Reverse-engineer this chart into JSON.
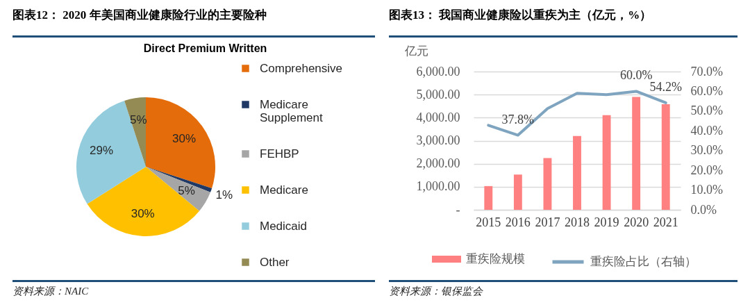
{
  "chart_data": [
    {
      "type": "pie",
      "title": "图表12： 2020 年美国商业健康险行业的主要险种",
      "subtitle": "Direct Premium Written",
      "categories": [
        "Comprehensive",
        "Medicare Supplement",
        "FEHBP",
        "Medicare",
        "Medicaid",
        "Other"
      ],
      "values": [
        30,
        1,
        5,
        30,
        29,
        5
      ],
      "colors": [
        "#e46c0a",
        "#1f3864",
        "#a6a6a6",
        "#ffc000",
        "#93cddd",
        "#948a54"
      ],
      "value_labels": [
        "30%",
        "1%",
        "5%",
        "30%",
        "29%",
        "5%"
      ],
      "legend": "right",
      "annotations": [
        "资料来源：NAIC"
      ]
    },
    {
      "type": "bar",
      "title": "图表13： 我国商业健康险以重疾为主（亿元，%）",
      "ylabel": "亿元",
      "categories": [
        "2015",
        "2016",
        "2017",
        "2018",
        "2019",
        "2020",
        "2021"
      ],
      "series": [
        {
          "name": "重疾险规模",
          "type": "bar",
          "color": "#ff8080",
          "values": [
            1030,
            1530,
            2250,
            3200,
            4110,
            4900,
            4580
          ]
        },
        {
          "name": "重疾险占比（右轴）",
          "type": "line",
          "axis": "y2",
          "color": "#7fa4bf",
          "values": [
            42.8,
            37.8,
            51.3,
            59.0,
            58.3,
            60.0,
            54.2
          ],
          "value_labels": [
            null,
            "37.8%",
            null,
            null,
            null,
            "60.0%",
            "54.2%"
          ]
        }
      ],
      "ylim": [
        0,
        6000
      ],
      "yticks": [
        {
          "value": 0,
          "label": "-"
        },
        {
          "value": 1000,
          "label": "1,000.00"
        },
        {
          "value": 2000,
          "label": "2,000.00"
        },
        {
          "value": 3000,
          "label": "3,000.00"
        },
        {
          "value": 4000,
          "label": "4,000.00"
        },
        {
          "value": 5000,
          "label": "5,000.00"
        },
        {
          "value": 6000,
          "label": "6,000.00"
        }
      ],
      "y2lim": [
        0,
        70
      ],
      "y2ticks": [
        {
          "value": 0,
          "label": "0.0%"
        },
        {
          "value": 10,
          "label": "10.0%"
        },
        {
          "value": 20,
          "label": "20.0%"
        },
        {
          "value": 30,
          "label": "30.0%"
        },
        {
          "value": 40,
          "label": "40.0%"
        },
        {
          "value": 50,
          "label": "50.0%"
        },
        {
          "value": 60,
          "label": "60.0%"
        },
        {
          "value": 70,
          "label": "70.0%"
        }
      ],
      "grid": "y",
      "legend": "bottom",
      "annotations": [
        "资料来源：银保监会"
      ]
    }
  ]
}
